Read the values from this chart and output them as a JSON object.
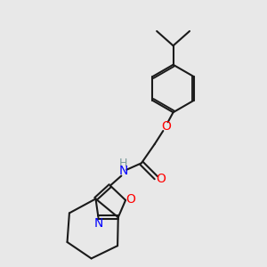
{
  "bg_color": "#e8e8e8",
  "bond_color": "#1a1a1a",
  "bond_width": 1.5,
  "N_color": "#0000ff",
  "O_color": "#ff0000",
  "H_color": "#7a9a9a",
  "font_size": 9,
  "fig_size": [
    3.0,
    3.0
  ],
  "dpi": 100,
  "xlim": [
    0,
    10
  ],
  "ylim": [
    0,
    10
  ]
}
